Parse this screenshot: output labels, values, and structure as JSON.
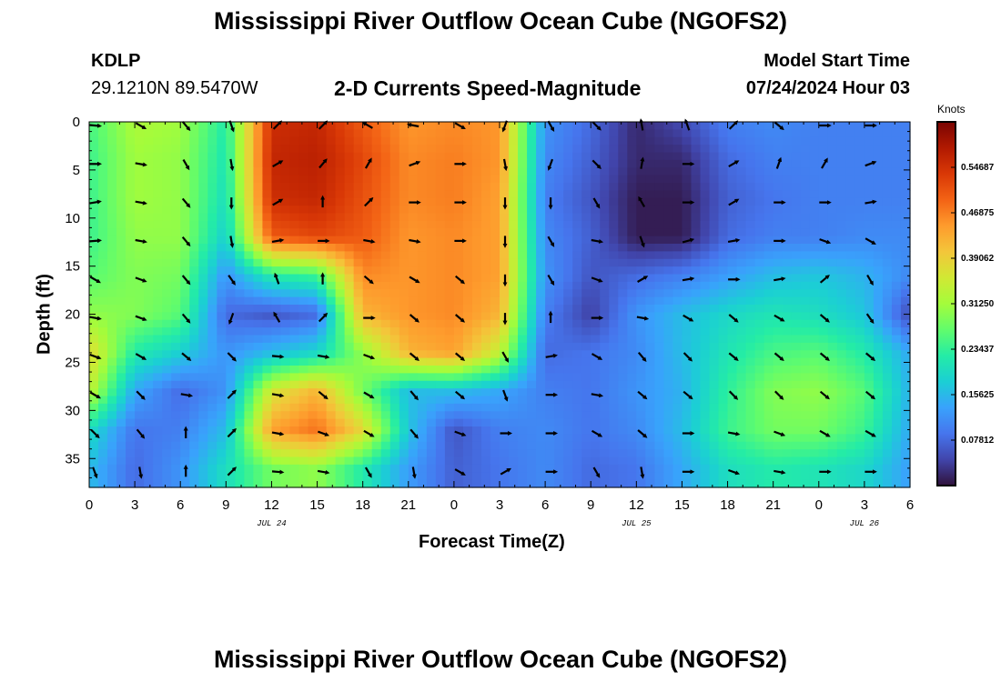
{
  "header": {
    "title": "Mississippi River Outflow Ocean Cube (NGOFS2)",
    "station_id": "KDLP",
    "station_coords": "29.1210N  89.5470W",
    "subtitle": "2-D Currents Speed-Magnitude",
    "model_start_label": "Model Start Time",
    "model_start_value": "07/24/2024 Hour 03"
  },
  "footer": {
    "title_repeat": "Mississippi River Outflow Ocean Cube (NGOFS2)"
  },
  "chart_data": {
    "type": "heatmap",
    "xlabel": "Forecast Time(Z)",
    "ylabel": "Depth (ft)",
    "colorbar_label": "Knots",
    "x_tick_labels": [
      "0",
      "3",
      "6",
      "9",
      "12",
      "15",
      "18",
      "21",
      "0",
      "3",
      "6",
      "9",
      "12",
      "15",
      "18",
      "21",
      "0",
      "3",
      "6"
    ],
    "x_date_labels": [
      {
        "label": "JUL 24",
        "after_tick": 12
      },
      {
        "label": "JUL 25",
        "after_tick": 36
      },
      {
        "label": "JUL 26",
        "after_tick": 51
      }
    ],
    "x_range_hours": [
      0,
      54
    ],
    "y_ticks": [
      0,
      5,
      10,
      15,
      20,
      25,
      30,
      35
    ],
    "y_range": [
      0,
      38
    ],
    "colorbar_ticks": [
      "0.54687",
      "0.46875",
      "0.39062",
      "0.31250",
      "0.23437",
      "0.15625",
      "0.07812"
    ],
    "colorbar_range": [
      0.0,
      0.625
    ],
    "colormap": [
      "#30123b",
      "#4145ab",
      "#4675ed",
      "#39a2fc",
      "#1bcfd4",
      "#24eca6",
      "#61fc6c",
      "#a4fc3b",
      "#d1e834",
      "#f3c63a",
      "#fe9b2d",
      "#f36315",
      "#d93806",
      "#b11901",
      "#7a0402"
    ],
    "speed_grid_hours": [
      0,
      3,
      6,
      9,
      12,
      15,
      18,
      21,
      24,
      27,
      30,
      33,
      36,
      39,
      42,
      45,
      48,
      51,
      54
    ],
    "speed_grid_depths": [
      0,
      4,
      8,
      12,
      16,
      20,
      24,
      28,
      32,
      36
    ],
    "speed_grid_knots": [
      [
        0.25,
        0.32,
        0.31,
        0.22,
        0.55,
        0.56,
        0.5,
        0.45,
        0.46,
        0.45,
        0.12,
        0.08,
        0.02,
        0.05,
        0.1,
        0.11,
        0.1,
        0.1,
        0.1
      ],
      [
        0.24,
        0.31,
        0.3,
        0.21,
        0.56,
        0.57,
        0.52,
        0.46,
        0.47,
        0.45,
        0.11,
        0.07,
        0.02,
        0.02,
        0.08,
        0.1,
        0.1,
        0.1,
        0.1
      ],
      [
        0.24,
        0.31,
        0.3,
        0.2,
        0.55,
        0.56,
        0.51,
        0.46,
        0.47,
        0.44,
        0.1,
        0.06,
        0.01,
        0.01,
        0.07,
        0.09,
        0.1,
        0.1,
        0.1
      ],
      [
        0.24,
        0.3,
        0.3,
        0.18,
        0.5,
        0.52,
        0.5,
        0.45,
        0.46,
        0.44,
        0.11,
        0.07,
        0.01,
        0.01,
        0.08,
        0.1,
        0.1,
        0.11,
        0.11
      ],
      [
        0.26,
        0.29,
        0.28,
        0.12,
        0.22,
        0.24,
        0.46,
        0.45,
        0.46,
        0.44,
        0.12,
        0.06,
        0.08,
        0.1,
        0.13,
        0.16,
        0.17,
        0.15,
        0.11
      ],
      [
        0.3,
        0.29,
        0.26,
        0.08,
        0.06,
        0.08,
        0.42,
        0.45,
        0.46,
        0.42,
        0.1,
        0.04,
        0.12,
        0.16,
        0.19,
        0.21,
        0.2,
        0.17,
        0.05
      ],
      [
        0.38,
        0.22,
        0.18,
        0.12,
        0.16,
        0.19,
        0.3,
        0.42,
        0.44,
        0.34,
        0.08,
        0.09,
        0.11,
        0.16,
        0.21,
        0.25,
        0.26,
        0.22,
        0.14
      ],
      [
        0.34,
        0.14,
        0.08,
        0.12,
        0.36,
        0.42,
        0.28,
        0.16,
        0.16,
        0.14,
        0.1,
        0.09,
        0.12,
        0.15,
        0.23,
        0.29,
        0.3,
        0.26,
        0.15
      ],
      [
        0.2,
        0.09,
        0.1,
        0.16,
        0.44,
        0.48,
        0.38,
        0.17,
        0.06,
        0.1,
        0.11,
        0.09,
        0.11,
        0.16,
        0.24,
        0.28,
        0.28,
        0.24,
        0.14
      ],
      [
        0.16,
        0.08,
        0.12,
        0.2,
        0.28,
        0.3,
        0.22,
        0.13,
        0.07,
        0.09,
        0.11,
        0.08,
        0.09,
        0.14,
        0.2,
        0.22,
        0.21,
        0.19,
        0.13
      ]
    ],
    "arrow_hours": [
      0,
      3,
      6,
      9,
      12,
      15,
      18,
      21,
      24,
      27,
      30,
      33,
      36,
      39,
      42,
      45,
      48,
      51
    ],
    "arrow_depths": [
      0,
      4,
      8,
      12,
      16,
      20,
      24,
      28,
      32,
      36
    ],
    "arrow_direction_deg": [
      [
        95,
        120,
        140,
        160,
        45,
        45,
        300,
        280,
        120,
        200,
        150,
        135,
        350,
        340,
        45,
        130,
        90,
        90
      ],
      [
        90,
        100,
        150,
        170,
        60,
        40,
        30,
        70,
        90,
        170,
        200,
        135,
        10,
        90,
        60,
        20,
        30,
        70
      ],
      [
        80,
        100,
        140,
        180,
        60,
        0,
        45,
        90,
        90,
        180,
        180,
        150,
        330,
        90,
        60,
        90,
        90,
        80
      ],
      [
        85,
        100,
        140,
        170,
        80,
        90,
        100,
        100,
        90,
        180,
        150,
        100,
        160,
        75,
        80,
        90,
        110,
        120
      ],
      [
        120,
        110,
        140,
        145,
        340,
        0,
        130,
        120,
        130,
        180,
        150,
        110,
        60,
        80,
        90,
        80,
        50,
        150
      ],
      [
        100,
        110,
        140,
        200,
        330,
        45,
        90,
        130,
        130,
        180,
        0,
        90,
        100,
        120,
        130,
        120,
        130,
        145
      ],
      [
        110,
        120,
        130,
        135,
        95,
        100,
        110,
        130,
        130,
        150,
        80,
        120,
        140,
        135,
        130,
        130,
        130,
        130
      ],
      [
        120,
        135,
        100,
        45,
        100,
        130,
        120,
        140,
        130,
        160,
        90,
        100,
        130,
        130,
        135,
        135,
        130,
        130
      ],
      [
        135,
        140,
        0,
        45,
        100,
        110,
        120,
        140,
        110,
        90,
        90,
        120,
        130,
        90,
        100,
        110,
        120,
        120
      ],
      [
        160,
        170,
        0,
        45,
        95,
        100,
        150,
        170,
        120,
        60,
        90,
        150,
        170,
        90,
        110,
        100,
        90,
        90
      ]
    ]
  }
}
